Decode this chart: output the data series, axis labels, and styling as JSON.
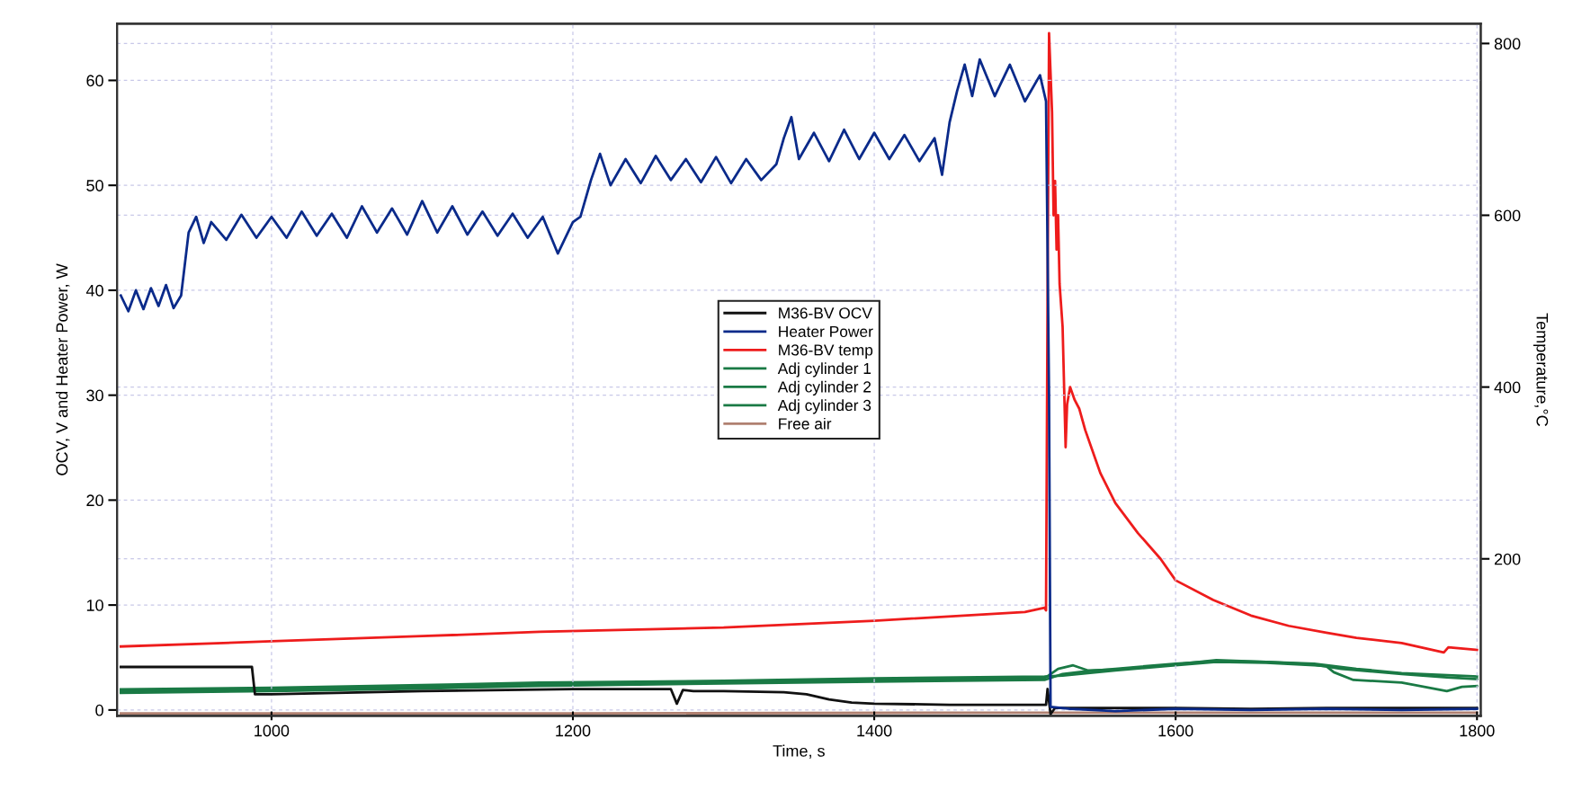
{
  "chart_data": {
    "type": "line",
    "xlabel": "Time, s",
    "ylabel": "OCV, V and Heater Power, W",
    "y2label": "Temperature,°C",
    "xlim": [
      897.5,
      1802.5
    ],
    "xticks": [
      1000,
      1200,
      1400,
      1600,
      1800
    ],
    "ylim": [
      -0.56,
      65.4
    ],
    "yticks": [
      0,
      10,
      20,
      30,
      40,
      50,
      60
    ],
    "y2lim": [
      17.2,
      823
    ],
    "y2ticks": [
      200,
      400,
      600,
      800
    ],
    "grid": true,
    "legend": "center",
    "line_style": "solid",
    "marker": "none",
    "series": [
      {
        "name": "M36-BV OCV",
        "color": "#111111",
        "x": [
          900,
          987,
          989,
          1000,
          1100,
          1200,
          1265,
          1269,
          1273,
          1280,
          1300,
          1340,
          1355,
          1370,
          1385,
          1400,
          1450,
          1514,
          1515,
          1517,
          1520,
          1560,
          1600,
          1650,
          1700,
          1750,
          1800
        ],
        "values": [
          4.1,
          4.1,
          1.5,
          1.5,
          1.8,
          2.0,
          2.0,
          0.6,
          1.9,
          1.8,
          1.8,
          1.7,
          1.5,
          1.0,
          0.7,
          0.6,
          0.5,
          0.5,
          2.0,
          -0.4,
          0.2,
          0.2,
          0.2,
          0.1,
          0.2,
          0.2,
          0.2
        ]
      },
      {
        "name": "Heater Power",
        "color": "#0a2a8a",
        "x": [
          900,
          905,
          910,
          915,
          920,
          925,
          930,
          935,
          940,
          945,
          950,
          955,
          960,
          970,
          980,
          990,
          1000,
          1010,
          1020,
          1030,
          1040,
          1050,
          1060,
          1070,
          1080,
          1090,
          1100,
          1110,
          1120,
          1130,
          1140,
          1150,
          1160,
          1170,
          1180,
          1190,
          1200,
          1205,
          1212,
          1218,
          1225,
          1235,
          1245,
          1255,
          1265,
          1275,
          1285,
          1295,
          1305,
          1315,
          1325,
          1335,
          1340,
          1345,
          1350,
          1360,
          1370,
          1380,
          1390,
          1400,
          1410,
          1420,
          1430,
          1440,
          1445,
          1450,
          1455,
          1460,
          1465,
          1470,
          1480,
          1490,
          1500,
          1510,
          1514,
          1516,
          1517,
          1530,
          1560,
          1600,
          1650,
          1700,
          1750,
          1800
        ],
        "values": [
          39.5,
          38,
          40,
          38.2,
          40.2,
          38.5,
          40.5,
          38.3,
          39.5,
          45.5,
          47,
          44.5,
          46.5,
          44.8,
          47.2,
          45,
          47,
          45,
          47.5,
          45.2,
          47.3,
          45,
          48,
          45.5,
          47.8,
          45.3,
          48.5,
          45.5,
          48,
          45.3,
          47.5,
          45.2,
          47.3,
          45,
          47,
          43.5,
          46.5,
          47,
          50.5,
          53,
          50,
          52.5,
          50.2,
          52.8,
          50.5,
          52.5,
          50.3,
          52.7,
          50.2,
          52.5,
          50.5,
          52,
          54.5,
          56.5,
          52.5,
          55,
          52.3,
          55.3,
          52.5,
          55,
          52.5,
          54.8,
          52.3,
          54.5,
          51,
          56,
          59,
          61.5,
          58.5,
          62,
          58.5,
          61.5,
          58,
          60.5,
          58,
          30,
          0.3,
          0.1,
          -0.1,
          0.1,
          0,
          0.1,
          0,
          0.1
        ]
      },
      {
        "name": "M36-BV temp",
        "color": "#ee1c1c",
        "axis": "y2",
        "x": [
          900,
          1000,
          1100,
          1178,
          1300,
          1400,
          1500,
          1513,
          1514,
          1515,
          1516,
          1518,
          1519,
          1520,
          1521,
          1522,
          1523,
          1525,
          1527,
          1528,
          1530,
          1533,
          1536,
          1540,
          1550,
          1560,
          1575,
          1590,
          1600,
          1625,
          1650,
          1675,
          1700,
          1720,
          1750,
          1778,
          1781,
          1800
        ],
        "values": [
          98,
          104,
          110,
          115,
          120,
          128,
          138,
          143,
          140,
          500,
          812,
          720,
          600,
          640,
          560,
          600,
          520,
          470,
          330,
          380,
          400,
          385,
          375,
          350,
          300,
          265,
          230,
          200,
          175,
          152,
          134,
          122,
          114,
          108,
          102,
          91,
          97,
          94
        ]
      },
      {
        "name": "Adj cylinder 1",
        "color": "#1a7a45",
        "axis": "y2",
        "x": [
          900,
          1000,
          1100,
          1178,
          1300,
          1400,
          1513,
          1525,
          1540,
          1560,
          1600,
          1627,
          1660,
          1692,
          1710,
          1750,
          1780,
          1800
        ],
        "values": [
          44,
          46,
          49,
          52,
          55,
          57,
          59,
          66,
          69,
          72,
          78,
          81,
          80,
          77,
          72,
          66,
          62,
          60
        ]
      },
      {
        "name": "Adj cylinder 2",
        "color": "#1a7a45",
        "axis": "y2",
        "x": [
          900,
          1000,
          1100,
          1178,
          1300,
          1400,
          1513,
          1522,
          1532,
          1542,
          1560,
          1600,
          1627,
          1660,
          1692,
          1720,
          1750,
          1800
        ],
        "values": [
          46,
          48,
          51,
          54,
          56,
          59,
          61,
          72,
          76,
          70,
          71,
          77,
          82,
          80,
          78,
          72,
          67,
          63
        ]
      },
      {
        "name": "Adj cylinder 3",
        "color": "#1a7a45",
        "axis": "y2",
        "x": [
          900,
          1000,
          1100,
          1178,
          1300,
          1400,
          1513,
          1525,
          1560,
          1600,
          1627,
          1660,
          1692,
          1700,
          1705,
          1718,
          1750,
          1780,
          1790,
          1800
        ],
        "values": [
          48,
          50,
          53,
          56,
          58,
          61,
          63,
          64,
          70,
          76,
          80,
          79,
          76,
          75,
          68,
          59,
          56,
          46,
          51,
          52
        ]
      },
      {
        "name": "Free air",
        "color": "#b08070",
        "axis": "y2",
        "x": [
          900,
          1200,
          1500,
          1800
        ],
        "values": [
          20,
          20,
          21,
          21
        ]
      }
    ]
  }
}
